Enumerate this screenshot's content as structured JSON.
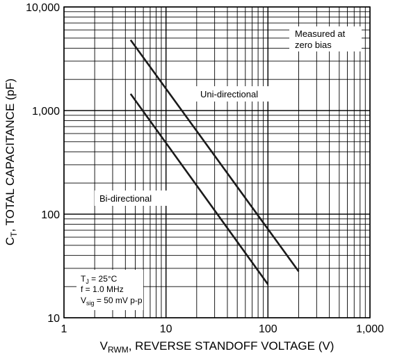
{
  "chart_data": {
    "type": "line",
    "xscale": "log",
    "yscale": "log",
    "xlim": [
      1,
      1000
    ],
    "ylim": [
      10,
      10000
    ],
    "grid": true,
    "x_ticks": [
      {
        "value": 1,
        "label": "1"
      },
      {
        "value": 10,
        "label": "10"
      },
      {
        "value": 100,
        "label": "100"
      },
      {
        "value": 1000,
        "label": "1,000"
      }
    ],
    "y_ticks": [
      {
        "value": 10,
        "label": "10"
      },
      {
        "value": 100,
        "label": "100"
      },
      {
        "value": 1000,
        "label": "1,000"
      },
      {
        "value": 10000,
        "label": "10,000"
      }
    ],
    "xlabel": {
      "pre": "V",
      "sub": "RWM",
      "post": ", REVERSE STANDOFF VOLTAGE (V)"
    },
    "ylabel": {
      "pre": "C",
      "sub": "T",
      "post": ", TOTAL CAPACITANCE (pF)"
    },
    "series": [
      {
        "name": "Uni-directional",
        "x": [
          4.5,
          200
        ],
        "y": [
          4800,
          28
        ]
      },
      {
        "name": "Bi-directional",
        "x": [
          4.5,
          100
        ],
        "y": [
          1450,
          21
        ]
      }
    ],
    "annotations": {
      "measured": [
        "Measured at",
        "zero bias"
      ],
      "conditions": [
        {
          "pre": "T",
          "sub": "J",
          "post": " = 25°C"
        },
        {
          "pre": "f = 1.0 MHz",
          "sub": "",
          "post": ""
        },
        {
          "pre": "V",
          "sub": "sig",
          "post": " = 50 mV p-p"
        }
      ]
    },
    "colors": {
      "line": "#1a1a1a",
      "grid": "#000000"
    }
  }
}
